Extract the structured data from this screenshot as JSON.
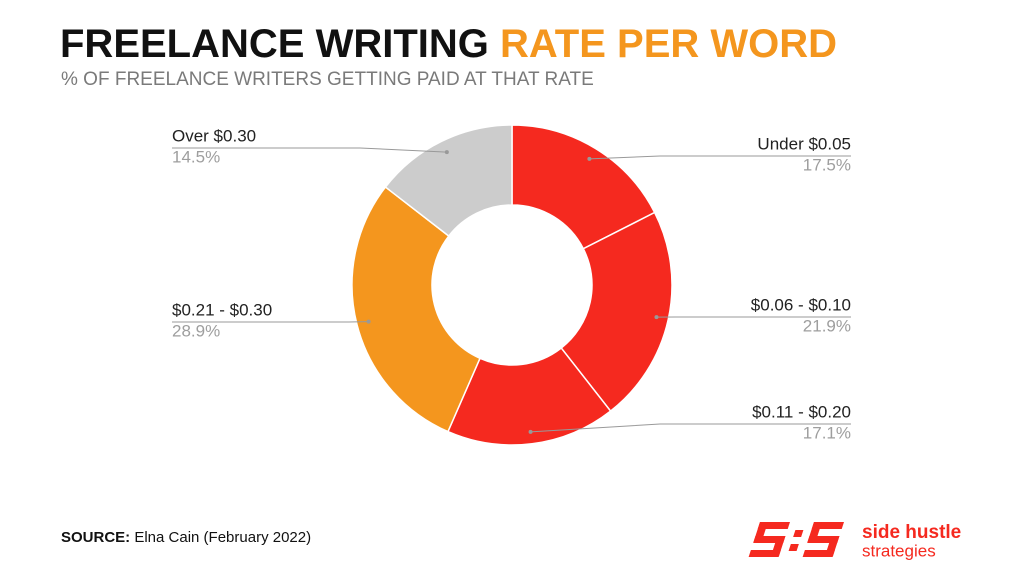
{
  "chart_data": {
    "type": "donut",
    "title": "FREELANCE WRITING",
    "title_highlight": "RATE PER WORD",
    "subtitle": "% OF FREELANCE WRITERS GETTING PAID AT THAT RATE",
    "categories": [
      "Under $0.05",
      "$0.06 - $0.10",
      "$0.11 - $0.20",
      "$0.21 - $0.30",
      "Over $0.30"
    ],
    "values": [
      17.5,
      21.9,
      17.1,
      28.9,
      14.5
    ],
    "value_labels": [
      "17.5%",
      "21.9%",
      "17.1%",
      "28.9%",
      "14.5%"
    ],
    "colors": [
      "#f5291f",
      "#f5291f",
      "#f5291f",
      "#f4961e",
      "#cccccc"
    ]
  },
  "source": {
    "label": "SOURCE:",
    "text": "Elna Cain (February 2022)"
  },
  "logo": {
    "name": "side hustle",
    "tagline": "strategies"
  }
}
